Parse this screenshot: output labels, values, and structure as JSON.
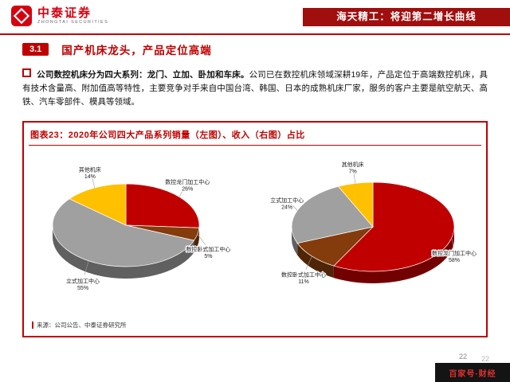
{
  "header": {
    "logo": {
      "brand_cn": "中泰证券",
      "brand_en": "ZHONGTAI SECURITIES"
    },
    "banner_title": "海天精工：将迎第二增长曲线"
  },
  "section": {
    "number": "3.1",
    "title": "国产机床龙头，产品定位高端"
  },
  "body": {
    "bold_lead": "公司数控机床分为四大系列：龙门、立加、卧加和车床。",
    "rest": "公司已在数控机床领域深耕19年，产品定位于高端数控机床，具有技术含量高、附加值高等特性，主要竞争对手来自中国台湾、韩国、日本的成熟机床厂家，服务的客户主要是航空航天、高铁、汽车零部件、模具等领域。"
  },
  "figure": {
    "title": "图表23：2020年公司四大产品系列销量（左图）、收入（右图）占比",
    "source": "来源：公司公告、中泰证券研究所"
  },
  "chart_data": [
    {
      "type": "pie",
      "title": "2020年四大产品系列销量占比（左图）",
      "labels": [
        "数控龙门加工中心",
        "数控卧式加工中心",
        "立式加工中心",
        "其他机床"
      ],
      "values": [
        26,
        5,
        55,
        14
      ],
      "colors": [
        "#c00000",
        "#843c0c",
        "#a0a0a0",
        "#ffc000"
      ],
      "effect": "3d",
      "legend_position": "none"
    },
    {
      "type": "pie",
      "title": "2020年四大产品系列收入占比（右图）",
      "labels": [
        "数控龙门加工中心",
        "数控卧式加工中心",
        "立式加工中心",
        "其他机床"
      ],
      "values": [
        58,
        11,
        24,
        7
      ],
      "colors": [
        "#c00000",
        "#843c0c",
        "#a0a0a0",
        "#ffc000"
      ],
      "effect": "3d",
      "legend_position": "none"
    }
  ],
  "footer": {
    "page_number": "22",
    "page_number_2": "22",
    "watermark": "百家号·财经"
  },
  "accent_color": "#c00000"
}
